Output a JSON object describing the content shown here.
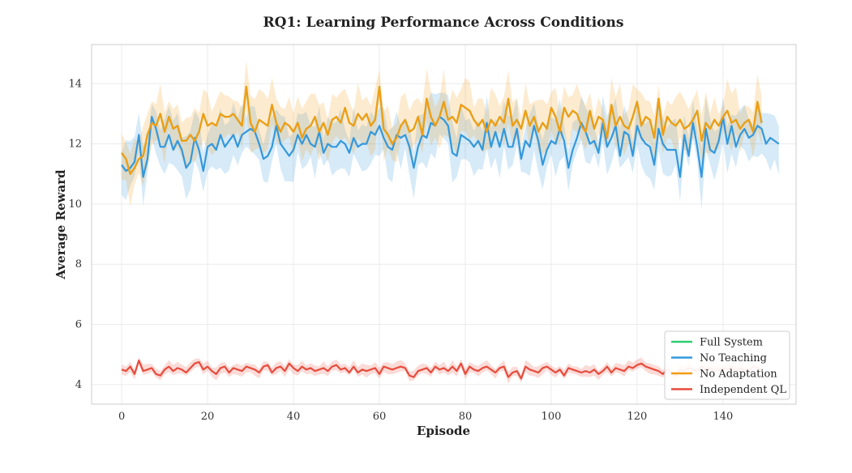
{
  "chart_data": {
    "type": "line",
    "title": "RQ1: Learning Performance Across Conditions",
    "xlabel": "Episode",
    "ylabel": "Average Reward",
    "xlim": [
      -7,
      157
    ],
    "ylim": [
      3.35,
      15.3
    ],
    "xticks": [
      0,
      20,
      40,
      60,
      80,
      100,
      120,
      140
    ],
    "yticks": [
      4,
      6,
      8,
      10,
      12,
      14
    ],
    "grid": true,
    "legend_position": "lower-right",
    "episodes_count": 150,
    "series": [
      {
        "name": "Full System",
        "color": "#2ecc71",
        "shaded": false,
        "values": [
          11.7,
          11.5,
          11.0,
          11.2,
          11.5,
          11.6,
          12.3,
          12.7,
          12.6,
          13.0,
          12.4,
          12.9,
          12.5,
          12.6,
          12.1,
          12.1,
          12.3,
          12.1,
          12.4,
          13.0,
          12.6,
          12.7,
          12.6,
          13.0,
          12.9,
          12.9,
          13.0,
          12.8,
          12.6,
          13.9,
          12.7,
          12.4,
          12.8,
          12.7,
          12.6,
          13.3,
          12.7,
          12.4,
          12.7,
          12.6,
          12.4,
          12.7,
          12.2,
          12.5,
          12.6,
          12.9,
          12.4,
          12.7,
          12.3,
          12.8,
          12.9,
          12.7,
          13.2,
          12.7,
          12.6,
          13.0,
          12.8,
          13.0,
          12.6,
          12.8,
          13.9,
          12.5,
          12.3,
          12.0,
          12.2,
          12.6,
          12.8,
          12.4,
          12.5,
          12.9,
          12.3,
          13.5,
          12.9,
          12.6,
          12.9,
          13.4,
          12.8,
          12.9,
          12.7,
          13.3,
          13.2,
          13.1,
          12.8,
          12.6,
          12.8,
          12.4,
          12.8,
          12.6,
          12.9,
          12.7,
          13.5,
          12.6,
          12.8,
          12.5,
          13.1,
          12.6,
          12.9,
          12.4,
          12.7,
          12.5,
          13.2,
          12.9,
          12.4,
          13.2,
          12.9,
          13.1,
          13.0,
          12.6,
          12.4,
          13.1,
          12.5,
          12.9,
          12.8,
          12.2,
          13.3,
          12.6,
          12.9,
          12.6,
          12.5,
          12.9,
          13.4,
          12.6,
          12.9,
          12.8,
          12.2,
          13.5,
          12.3,
          12.9,
          12.7,
          12.6,
          12.8,
          12.5,
          12.6,
          12.8,
          13.1,
          12.1,
          12.7,
          12.5,
          12.8,
          12.6,
          12.9,
          13.1,
          12.7,
          12.8,
          12.5,
          12.7,
          12.8,
          12.4,
          13.4,
          12.7
        ]
      },
      {
        "name": "No Teaching",
        "color": "#3498db",
        "shaded": true,
        "values": [
          11.3,
          11.1,
          11.2,
          11.4,
          12.3,
          10.9,
          11.5,
          12.9,
          12.5,
          11.9,
          11.9,
          12.3,
          11.8,
          12.1,
          11.8,
          11.2,
          11.4,
          12.2,
          11.8,
          11.1,
          11.9,
          12.0,
          11.8,
          12.3,
          11.9,
          12.1,
          12.3,
          11.9,
          12.3,
          12.4,
          12.5,
          12.4,
          12.0,
          11.5,
          11.6,
          11.9,
          12.6,
          12.0,
          11.8,
          11.6,
          11.8,
          12.3,
          12.0,
          12.3,
          12.0,
          11.9,
          12.4,
          11.7,
          12.0,
          11.9,
          11.9,
          12.1,
          12.0,
          11.7,
          12.2,
          11.9,
          12.0,
          12.0,
          12.4,
          12.3,
          12.6,
          12.2,
          11.9,
          11.8,
          12.3,
          12.2,
          12.3,
          11.9,
          11.2,
          11.9,
          12.3,
          12.2,
          12.7,
          12.6,
          12.9,
          12.8,
          12.6,
          11.7,
          11.6,
          12.3,
          12.2,
          12.1,
          11.9,
          12.1,
          11.8,
          12.7,
          11.9,
          12.4,
          11.9,
          12.5,
          11.9,
          11.9,
          12.5,
          11.5,
          12.1,
          11.9,
          12.6,
          12.1,
          11.3,
          11.8,
          12.1,
          12.0,
          12.5,
          12.1,
          11.2,
          11.8,
          12.2,
          12.7,
          12.4,
          12.0,
          12.1,
          11.7,
          12.7,
          11.9,
          12.2,
          12.6,
          11.6,
          12.4,
          12.3,
          11.6,
          12.6,
          12.2,
          12.0,
          11.9,
          11.3,
          12.5,
          12.0,
          11.8,
          11.8,
          11.8,
          10.9,
          12.3,
          11.6,
          12.7,
          11.9,
          10.9,
          12.5,
          11.8,
          11.7,
          12.1,
          12.9,
          12.0,
          12.6,
          11.9,
          12.3,
          12.5,
          12.2,
          12.3,
          12.6,
          12.5,
          12.0,
          12.2,
          12.1,
          12.0
        ]
      },
      {
        "name": "No Adaptation",
        "color": "#f39c12",
        "shaded": true,
        "values": [
          11.7,
          11.5,
          11.0,
          11.2,
          11.5,
          11.6,
          12.3,
          12.7,
          12.6,
          13.0,
          12.4,
          12.9,
          12.5,
          12.6,
          12.1,
          12.1,
          12.3,
          12.1,
          12.4,
          13.0,
          12.6,
          12.7,
          12.6,
          13.0,
          12.9,
          12.9,
          13.0,
          12.8,
          12.6,
          13.9,
          12.7,
          12.4,
          12.8,
          12.7,
          12.6,
          13.3,
          12.7,
          12.4,
          12.7,
          12.6,
          12.4,
          12.7,
          12.2,
          12.5,
          12.6,
          12.9,
          12.4,
          12.7,
          12.3,
          12.8,
          12.9,
          12.7,
          13.2,
          12.7,
          12.6,
          13.0,
          12.8,
          13.0,
          12.6,
          12.8,
          13.9,
          12.5,
          12.3,
          12.0,
          12.2,
          12.6,
          12.8,
          12.4,
          12.5,
          12.9,
          12.3,
          13.5,
          12.9,
          12.6,
          12.9,
          13.4,
          12.8,
          12.9,
          12.7,
          13.3,
          13.2,
          13.1,
          12.8,
          12.6,
          12.8,
          12.4,
          12.8,
          12.6,
          12.9,
          12.7,
          13.5,
          12.6,
          12.8,
          12.5,
          13.1,
          12.6,
          12.9,
          12.4,
          12.7,
          12.5,
          13.2,
          12.9,
          12.4,
          13.2,
          12.9,
          13.1,
          13.0,
          12.6,
          12.4,
          13.1,
          12.5,
          12.9,
          12.8,
          12.2,
          13.3,
          12.6,
          12.9,
          12.6,
          12.5,
          12.9,
          13.4,
          12.6,
          12.9,
          12.8,
          12.2,
          13.5,
          12.3,
          12.9,
          12.7,
          12.6,
          12.8,
          12.5,
          12.6,
          12.8,
          13.1,
          12.1,
          12.7,
          12.5,
          12.8,
          12.6,
          12.9,
          13.1,
          12.7,
          12.8,
          12.5,
          12.7,
          12.8,
          12.4,
          13.4,
          12.7
        ]
      },
      {
        "name": "Independent QL",
        "color": "#e74c3c",
        "shaded": true,
        "values": [
          4.5,
          4.45,
          4.6,
          4.35,
          4.8,
          4.45,
          4.5,
          4.55,
          4.35,
          4.3,
          4.5,
          4.6,
          4.45,
          4.55,
          4.5,
          4.4,
          4.55,
          4.7,
          4.75,
          4.5,
          4.6,
          4.45,
          4.35,
          4.55,
          4.6,
          4.4,
          4.55,
          4.5,
          4.45,
          4.6,
          4.55,
          4.5,
          4.4,
          4.6,
          4.65,
          4.4,
          4.55,
          4.6,
          4.45,
          4.7,
          4.55,
          4.45,
          4.6,
          4.5,
          4.55,
          4.45,
          4.5,
          4.55,
          4.45,
          4.6,
          4.65,
          4.5,
          4.55,
          4.4,
          4.6,
          4.4,
          4.5,
          4.45,
          4.5,
          4.55,
          4.35,
          4.6,
          4.55,
          4.5,
          4.55,
          4.6,
          4.55,
          4.3,
          4.25,
          4.45,
          4.5,
          4.55,
          4.4,
          4.6,
          4.5,
          4.55,
          4.45,
          4.6,
          4.45,
          4.7,
          4.35,
          4.6,
          4.5,
          4.45,
          4.55,
          4.6,
          4.5,
          4.4,
          4.55,
          4.6,
          4.25,
          4.4,
          4.45,
          4.2,
          4.6,
          4.5,
          4.45,
          4.4,
          4.55,
          4.6,
          4.5,
          4.4,
          4.5,
          4.3,
          4.55,
          4.5,
          4.45,
          4.4,
          4.45,
          4.4,
          4.5,
          4.35,
          4.45,
          4.6,
          4.4,
          4.55,
          4.5,
          4.45,
          4.6,
          4.55,
          4.65,
          4.7,
          4.6,
          4.55,
          4.5,
          4.45,
          4.35,
          4.5,
          4.4,
          4.3,
          4.5,
          4.45,
          4.55,
          4.5,
          4.45,
          4.6,
          4.5,
          4.55,
          4.45,
          4.5,
          4.55,
          4.5,
          4.6,
          4.45,
          4.55,
          4.5,
          4.45,
          4.6,
          4.55,
          4.5
        ]
      }
    ]
  }
}
